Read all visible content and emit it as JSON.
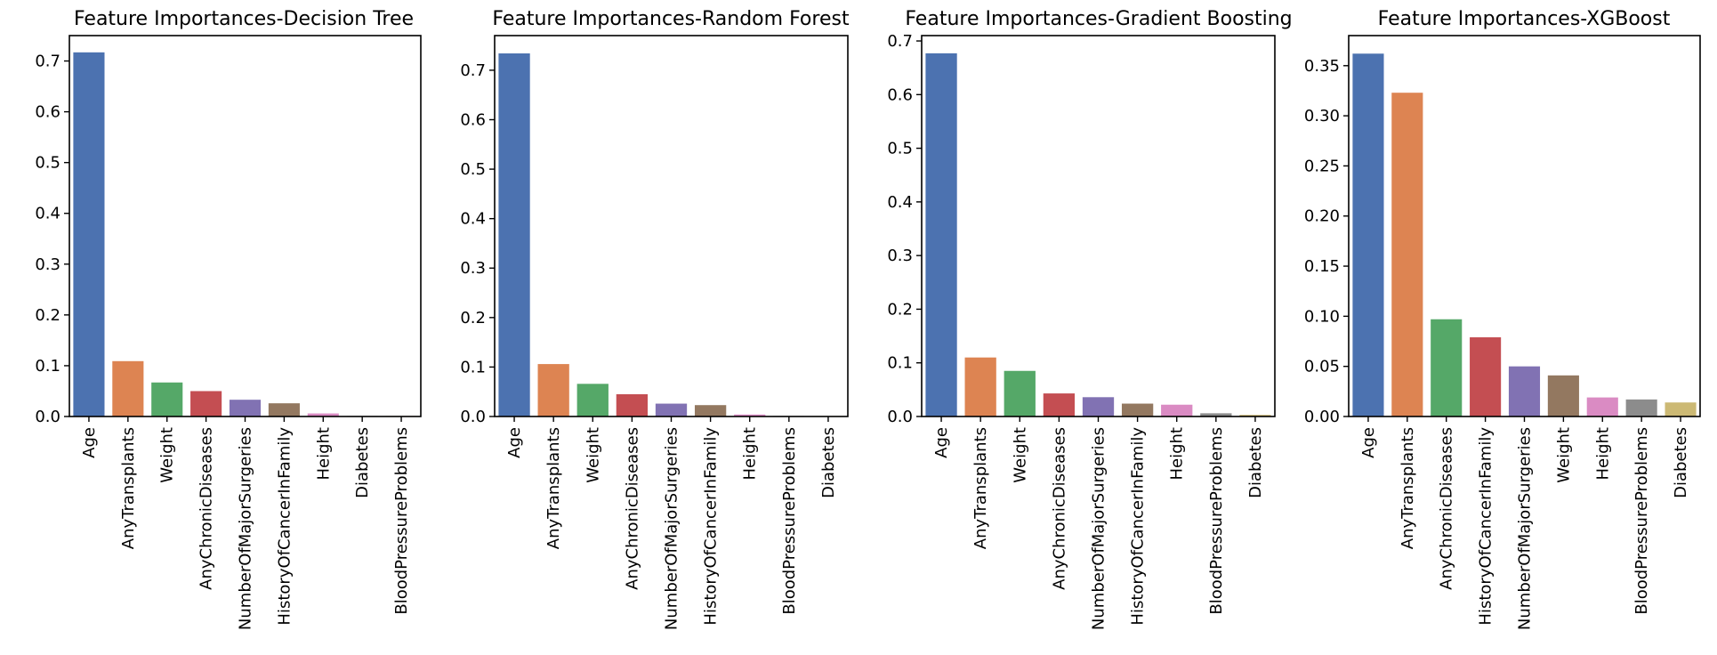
{
  "palette": [
    "#4c72b0",
    "#dd8452",
    "#55a868",
    "#c44e52",
    "#8172b3",
    "#937860",
    "#da8bc3",
    "#8c8c8c",
    "#ccb974"
  ],
  "chart_data": [
    {
      "type": "bar",
      "title": "Feature Importances-Decision Tree",
      "xlabel": "",
      "ylabel": "",
      "categories": [
        "Age",
        "AnyTransplants",
        "Weight",
        "AnyChronicDiseases",
        "NumberOfMajorSurgeries",
        "HistoryOfCancerInFamily",
        "Height",
        "Diabetes",
        "BloodPressureProblems"
      ],
      "values": [
        0.717,
        0.109,
        0.067,
        0.05,
        0.033,
        0.026,
        0.006,
        0.001,
        0.001
      ],
      "ylim": [
        0,
        0.75
      ],
      "yticks": [
        0.0,
        0.1,
        0.2,
        0.3,
        0.4,
        0.5,
        0.6,
        0.7
      ],
      "ytick_labels": [
        "0.0",
        "0.1",
        "0.2",
        "0.3",
        "0.4",
        "0.5",
        "0.6",
        "0.7"
      ],
      "colors": [
        "#4c72b0",
        "#dd8452",
        "#55a868",
        "#c44e52",
        "#8172b3",
        "#937860",
        "#da8bc3",
        "#8c8c8c",
        "#ccb974"
      ],
      "grid": false
    },
    {
      "type": "bar",
      "title": "Feature Importances-Random Forest",
      "xlabel": "",
      "ylabel": "",
      "categories": [
        "Age",
        "AnyTransplants",
        "Weight",
        "AnyChronicDiseases",
        "NumberOfMajorSurgeries",
        "HistoryOfCancerInFamily",
        "Height",
        "BloodPressureProblems",
        "Diabetes"
      ],
      "values": [
        0.734,
        0.106,
        0.066,
        0.045,
        0.026,
        0.023,
        0.004,
        0.001,
        0.001
      ],
      "ylim": [
        0,
        0.77
      ],
      "yticks": [
        0.0,
        0.1,
        0.2,
        0.3,
        0.4,
        0.5,
        0.6,
        0.7
      ],
      "ytick_labels": [
        "0.0",
        "0.1",
        "0.2",
        "0.3",
        "0.4",
        "0.5",
        "0.6",
        "0.7"
      ],
      "colors": [
        "#4c72b0",
        "#dd8452",
        "#55a868",
        "#c44e52",
        "#8172b3",
        "#937860",
        "#da8bc3",
        "#8c8c8c",
        "#ccb974"
      ],
      "grid": false
    },
    {
      "type": "bar",
      "title": "Feature Importances-Gradient Boosting",
      "xlabel": "",
      "ylabel": "",
      "categories": [
        "Age",
        "AnyTransplants",
        "Weight",
        "AnyChronicDiseases",
        "NumberOfMajorSurgeries",
        "HistoryOfCancerInFamily",
        "Height",
        "BloodPressureProblems",
        "Diabetes"
      ],
      "values": [
        0.677,
        0.11,
        0.085,
        0.043,
        0.036,
        0.024,
        0.022,
        0.006,
        0.003
      ],
      "ylim": [
        0,
        0.71
      ],
      "yticks": [
        0.0,
        0.1,
        0.2,
        0.3,
        0.4,
        0.5,
        0.6,
        0.7
      ],
      "ytick_labels": [
        "0.0",
        "0.1",
        "0.2",
        "0.3",
        "0.4",
        "0.5",
        "0.6",
        "0.7"
      ],
      "colors": [
        "#4c72b0",
        "#dd8452",
        "#55a868",
        "#c44e52",
        "#8172b3",
        "#937860",
        "#da8bc3",
        "#8c8c8c",
        "#ccb974"
      ],
      "grid": false
    },
    {
      "type": "bar",
      "title": "Feature Importances-XGBoost",
      "xlabel": "",
      "ylabel": "",
      "categories": [
        "Age",
        "AnyTransplants",
        "AnyChronicDiseases",
        "HistoryOfCancerInFamily",
        "NumberOfMajorSurgeries",
        "Weight",
        "Height",
        "BloodPressureProblems",
        "Diabetes"
      ],
      "values": [
        0.362,
        0.323,
        0.097,
        0.079,
        0.05,
        0.041,
        0.019,
        0.017,
        0.014
      ],
      "ylim": [
        0,
        0.38
      ],
      "yticks": [
        0.0,
        0.05,
        0.1,
        0.15,
        0.2,
        0.25,
        0.3,
        0.35
      ],
      "ytick_labels": [
        "0.00",
        "0.05",
        "0.10",
        "0.15",
        "0.20",
        "0.25",
        "0.30",
        "0.35"
      ],
      "colors": [
        "#4c72b0",
        "#dd8452",
        "#55a868",
        "#c44e52",
        "#8172b3",
        "#937860",
        "#da8bc3",
        "#8c8c8c",
        "#ccb974"
      ],
      "grid": false
    }
  ]
}
